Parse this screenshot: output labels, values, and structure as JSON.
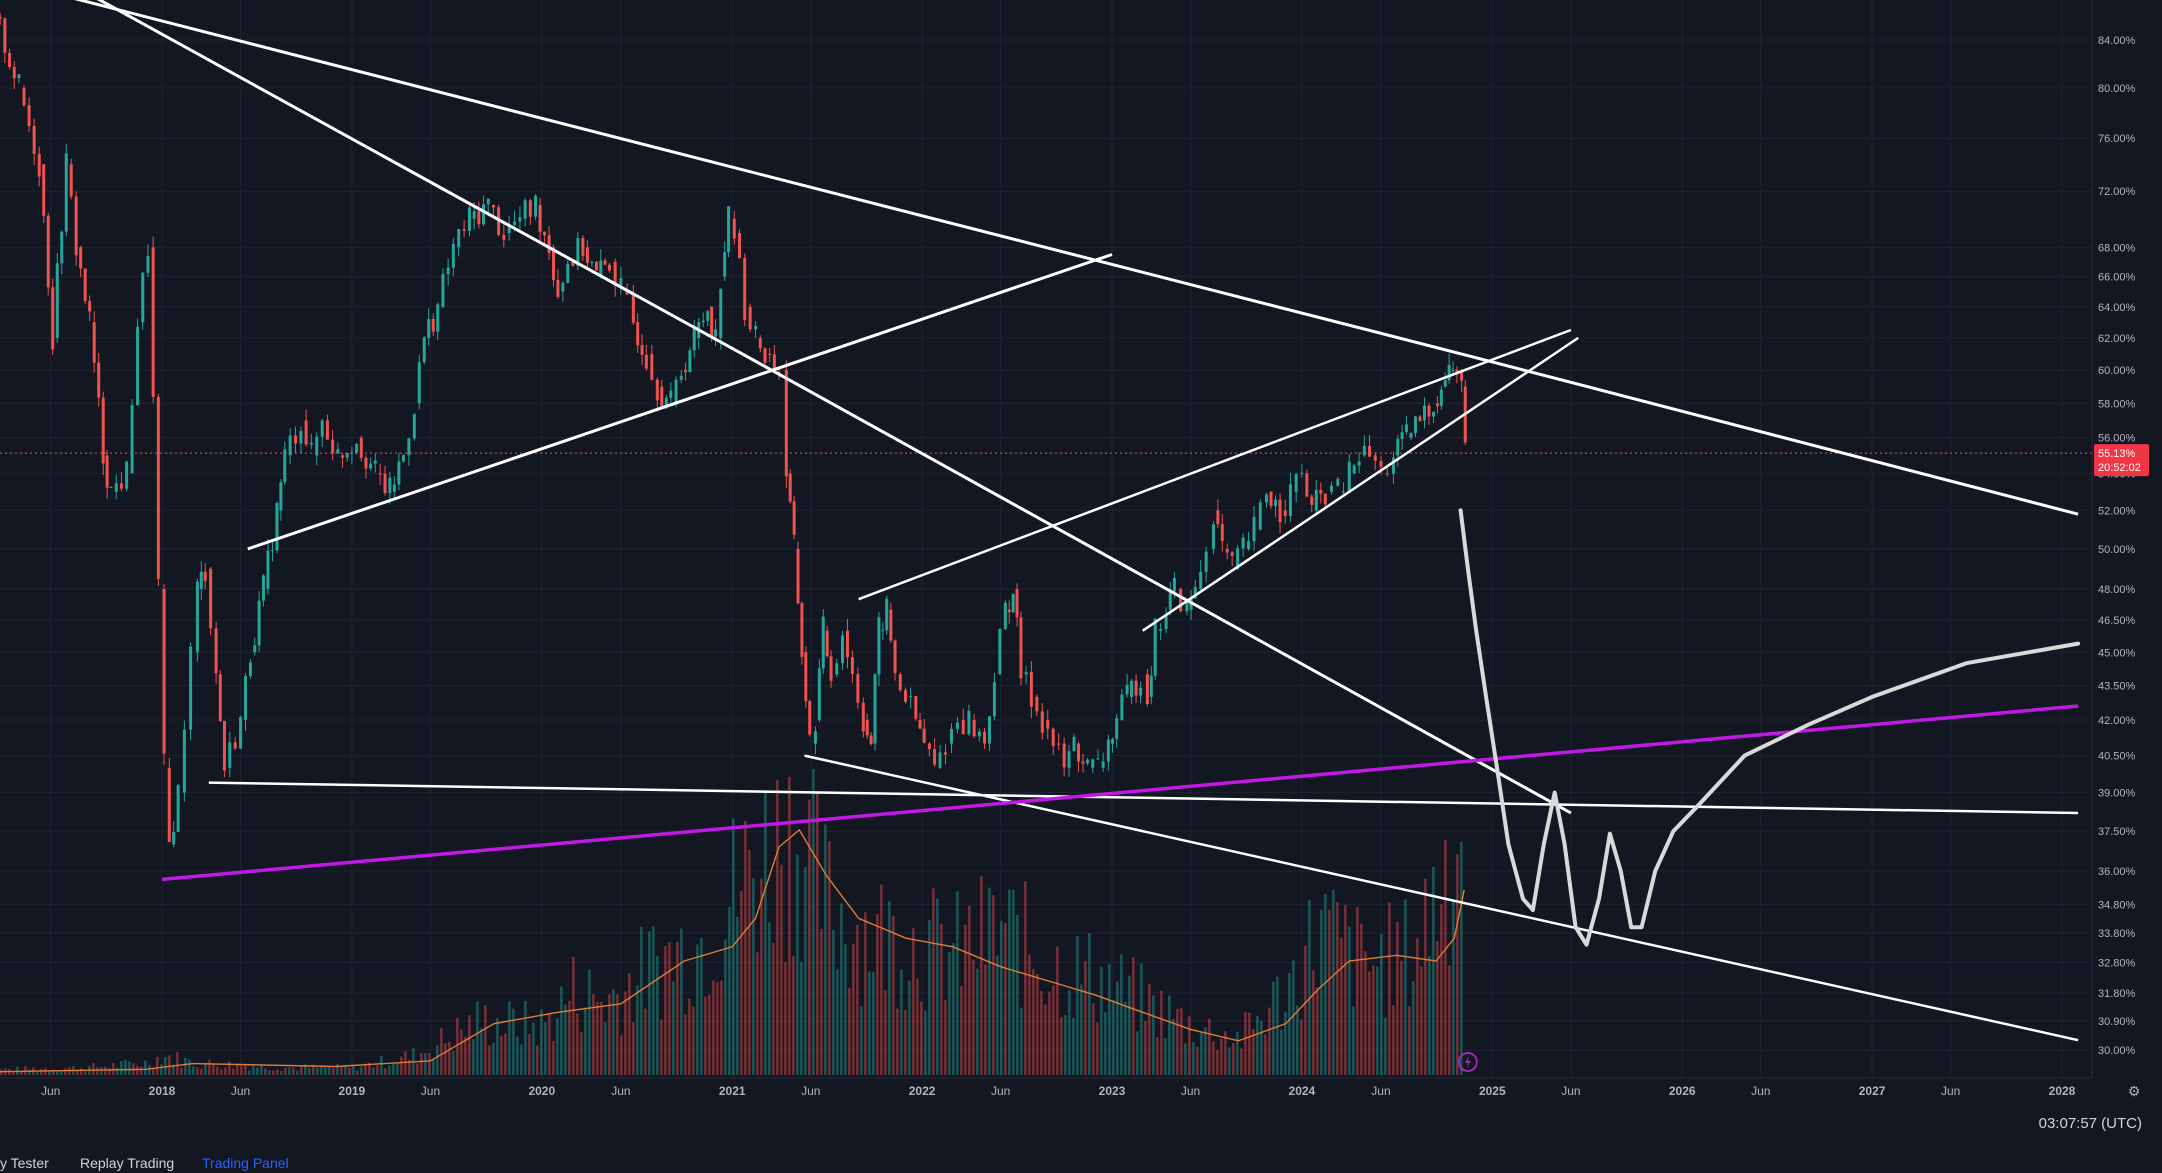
{
  "chart_data": {
    "type": "candlestick",
    "scale": "log",
    "y_axis_format": "percent",
    "y_ticks": [
      "84.00%",
      "80.00%",
      "76.00%",
      "72.00%",
      "68.00%",
      "66.00%",
      "64.00%",
      "62.00%",
      "60.00%",
      "58.00%",
      "56.00%",
      "54.00%",
      "52.00%",
      "50.00%",
      "48.00%",
      "46.50%",
      "45.00%",
      "43.50%",
      "42.00%",
      "40.50%",
      "39.00%",
      "37.50%",
      "36.00%",
      "34.80%",
      "33.80%",
      "32.80%",
      "31.80%",
      "30.90%",
      "30.00%"
    ],
    "y_tick_values": [
      84,
      80,
      76,
      72,
      68,
      66,
      64,
      62,
      60,
      58,
      56,
      54,
      52,
      50,
      48,
      46.5,
      45,
      43.5,
      42,
      40.5,
      39,
      37.5,
      36,
      34.8,
      33.8,
      32.8,
      31.8,
      30.9,
      30
    ],
    "x_ticks": [
      "Jun",
      "2018",
      "Jun",
      "2019",
      "Jun",
      "2020",
      "Jun",
      "2021",
      "Jun",
      "2022",
      "Jun",
      "2023",
      "Jun",
      "2024",
      "Jun",
      "2025",
      "Jun",
      "2026",
      "Jun",
      "2027",
      "Jun",
      "2028"
    ],
    "x_tick_dates": [
      "2017-06",
      "2018-01",
      "2018-06",
      "2019-01",
      "2019-06",
      "2020-01",
      "2020-06",
      "2021-01",
      "2021-06",
      "2022-01",
      "2022-06",
      "2023-01",
      "2023-06",
      "2024-01",
      "2024-06",
      "2025-01",
      "2025-06",
      "2026-01",
      "2026-06",
      "2027-01",
      "2027-06",
      "2028-01"
    ],
    "price_path": [
      [
        "2017-01-05",
        87
      ],
      [
        "2017-02-15",
        86
      ],
      [
        "2017-04-01",
        80
      ],
      [
        "2017-05-10",
        74
      ],
      [
        "2017-06-05",
        62
      ],
      [
        "2017-07-01",
        74
      ],
      [
        "2017-07-20",
        68
      ],
      [
        "2017-08-15",
        63
      ],
      [
        "2017-09-10",
        55
      ],
      [
        "2017-09-25",
        53
      ],
      [
        "2017-10-25",
        54
      ],
      [
        "2017-11-15",
        63
      ],
      [
        "2017-12-05",
        68
      ],
      [
        "2017-12-25",
        48
      ],
      [
        "2018-01-05",
        40
      ],
      [
        "2018-01-15",
        37
      ],
      [
        "2018-02-01",
        39
      ],
      [
        "2018-02-25",
        45
      ],
      [
        "2018-03-10",
        48
      ],
      [
        "2018-03-25",
        49
      ],
      [
        "2018-04-15",
        44
      ],
      [
        "2018-05-01",
        40
      ],
      [
        "2018-06-01",
        42
      ],
      [
        "2018-06-20",
        45
      ],
      [
        "2018-07-15",
        48
      ],
      [
        "2018-08-10",
        52
      ],
      [
        "2018-08-25",
        55
      ],
      [
        "2018-09-25",
        57
      ],
      [
        "2018-10-15",
        55
      ],
      [
        "2018-11-05",
        57
      ],
      [
        "2018-12-05",
        55
      ],
      [
        "2019-01-10",
        56
      ],
      [
        "2019-02-15",
        54
      ],
      [
        "2019-03-15",
        53
      ],
      [
        "2019-04-10",
        55
      ],
      [
        "2019-05-01",
        58
      ],
      [
        "2019-05-20",
        62
      ],
      [
        "2019-06-15",
        64
      ],
      [
        "2019-07-15",
        68
      ],
      [
        "2019-08-15",
        70
      ],
      [
        "2019-09-20",
        71
      ],
      [
        "2019-10-20",
        69
      ],
      [
        "2019-11-20",
        70
      ],
      [
        "2019-12-20",
        71
      ],
      [
        "2020-01-15",
        68
      ],
      [
        "2020-02-01",
        65
      ],
      [
        "2020-02-20",
        67
      ],
      [
        "2020-03-20",
        68
      ],
      [
        "2020-04-15",
        66
      ],
      [
        "2020-05-10",
        67
      ],
      [
        "2020-06-01",
        65
      ],
      [
        "2020-06-25",
        63
      ],
      [
        "2020-07-20",
        61
      ],
      [
        "2020-08-10",
        59
      ],
      [
        "2020-09-05",
        58
      ],
      [
        "2020-09-25",
        60
      ],
      [
        "2020-10-20",
        62
      ],
      [
        "2020-11-15",
        64
      ],
      [
        "2020-11-30",
        62
      ],
      [
        "2020-12-10",
        66
      ],
      [
        "2020-12-25",
        70
      ],
      [
        "2021-01-05",
        69
      ],
      [
        "2021-01-25",
        64
      ],
      [
        "2021-02-15",
        62
      ],
      [
        "2021-03-05",
        61
      ],
      [
        "2021-04-01",
        60
      ],
      [
        "2021-04-15",
        54
      ],
      [
        "2021-04-30",
        50
      ],
      [
        "2021-05-15",
        45
      ],
      [
        "2021-05-30",
        41
      ],
      [
        "2021-06-10",
        42
      ],
      [
        "2021-06-25",
        46
      ],
      [
        "2021-07-10",
        44
      ],
      [
        "2021-08-01",
        46
      ],
      [
        "2021-08-20",
        44
      ],
      [
        "2021-09-10",
        42
      ],
      [
        "2021-09-25",
        41
      ],
      [
        "2021-10-10",
        46
      ],
      [
        "2021-10-25",
        47
      ],
      [
        "2021-11-10",
        44
      ],
      [
        "2021-11-30",
        43
      ],
      [
        "2021-12-20",
        42
      ],
      [
        "2022-01-05",
        41
      ],
      [
        "2022-01-25",
        40
      ],
      [
        "2022-02-15",
        41
      ],
      [
        "2022-03-10",
        42
      ],
      [
        "2022-04-01",
        42
      ],
      [
        "2022-05-01",
        41
      ],
      [
        "2022-05-20",
        44
      ],
      [
        "2022-06-10",
        47
      ],
      [
        "2022-06-25",
        48
      ],
      [
        "2022-07-10",
        44
      ],
      [
        "2022-07-30",
        43
      ],
      [
        "2022-08-20",
        42
      ],
      [
        "2022-09-10",
        41
      ],
      [
        "2022-10-01",
        40
      ],
      [
        "2022-10-20",
        41
      ],
      [
        "2022-11-15",
        40
      ],
      [
        "2022-12-05",
        40
      ],
      [
        "2022-12-25",
        41
      ],
      [
        "2023-01-10",
        42
      ],
      [
        "2023-01-30",
        43
      ],
      [
        "2023-02-25",
        44
      ],
      [
        "2023-03-10",
        43
      ],
      [
        "2023-03-25",
        46
      ],
      [
        "2023-04-15",
        47
      ],
      [
        "2023-05-01",
        48
      ],
      [
        "2023-05-25",
        47
      ],
      [
        "2023-06-10",
        48
      ],
      [
        "2023-07-01",
        50
      ],
      [
        "2023-07-15",
        52
      ],
      [
        "2023-08-01",
        50
      ],
      [
        "2023-08-20",
        49
      ],
      [
        "2023-09-10",
        50
      ],
      [
        "2023-10-01",
        51
      ],
      [
        "2023-10-25",
        53
      ],
      [
        "2023-11-20",
        52
      ],
      [
        "2023-12-10",
        53
      ],
      [
        "2024-01-01",
        54
      ],
      [
        "2024-01-20",
        52
      ],
      [
        "2024-02-15",
        53
      ],
      [
        "2024-03-10",
        53
      ],
      [
        "2024-04-01",
        54
      ],
      [
        "2024-04-20",
        55
      ],
      [
        "2024-05-10",
        55
      ],
      [
        "2024-06-01",
        54
      ],
      [
        "2024-06-25",
        55
      ],
      [
        "2024-07-20",
        56
      ],
      [
        "2024-08-15",
        57
      ],
      [
        "2024-09-10",
        58
      ],
      [
        "2024-09-25",
        59
      ],
      [
        "2024-10-10",
        60
      ],
      [
        "2024-10-25",
        60
      ],
      [
        "2024-11-03",
        59
      ],
      [
        "2024-11-10",
        55.13
      ]
    ],
    "current_price_label": "55.13%",
    "current_time_label": "20:52:02",
    "volume_bars": [
      [
        "2017-01-01",
        2
      ],
      [
        "2017-08-01",
        3
      ],
      [
        "2017-12-01",
        5
      ],
      [
        "2018-01-01",
        8
      ],
      [
        "2018-03-01",
        5
      ],
      [
        "2018-09-01",
        3
      ],
      [
        "2019-01-01",
        3
      ],
      [
        "2019-05-01",
        8
      ],
      [
        "2019-07-01",
        15
      ],
      [
        "2019-09-01",
        22
      ],
      [
        "2020-01-01",
        20
      ],
      [
        "2020-03-01",
        35
      ],
      [
        "2020-05-01",
        30
      ],
      [
        "2020-08-01",
        45
      ],
      [
        "2020-11-01",
        55
      ],
      [
        "2021-01-01",
        75
      ],
      [
        "2021-03-01",
        90
      ],
      [
        "2021-04-15",
        100
      ],
      [
        "2021-05-15",
        95
      ],
      [
        "2021-07-01",
        70
      ],
      [
        "2021-09-01",
        60
      ],
      [
        "2021-12-01",
        55
      ],
      [
        "2022-03-01",
        50
      ],
      [
        "2022-06-01",
        60
      ],
      [
        "2022-09-01",
        45
      ],
      [
        "2022-12-01",
        40
      ],
      [
        "2023-03-01",
        30
      ],
      [
        "2023-06-01",
        20
      ],
      [
        "2023-09-01",
        15
      ],
      [
        "2023-12-01",
        35
      ],
      [
        "2024-02-01",
        60
      ],
      [
        "2024-05-01",
        45
      ],
      [
        "2024-08-01",
        50
      ],
      [
        "2024-10-15",
        95
      ],
      [
        "2024-11-05",
        100
      ]
    ],
    "volume_ma": [
      [
        "2017-01-01",
        1
      ],
      [
        "2017-12-01",
        2
      ],
      [
        "2018-03-01",
        4
      ],
      [
        "2018-12-01",
        3
      ],
      [
        "2019-06-01",
        5
      ],
      [
        "2019-10-01",
        18
      ],
      [
        "2020-02-01",
        22
      ],
      [
        "2020-06-01",
        25
      ],
      [
        "2020-10-01",
        40
      ],
      [
        "2021-01-01",
        45
      ],
      [
        "2021-02-15",
        55
      ],
      [
        "2021-04-01",
        80
      ],
      [
        "2021-05-10",
        86
      ],
      [
        "2021-07-01",
        70
      ],
      [
        "2021-09-01",
        55
      ],
      [
        "2021-12-01",
        48
      ],
      [
        "2022-03-01",
        45
      ],
      [
        "2022-06-01",
        38
      ],
      [
        "2022-09-01",
        33
      ],
      [
        "2022-12-01",
        28
      ],
      [
        "2023-03-01",
        22
      ],
      [
        "2023-06-01",
        16
      ],
      [
        "2023-09-01",
        12
      ],
      [
        "2023-12-01",
        18
      ],
      [
        "2024-02-01",
        30
      ],
      [
        "2024-04-01",
        40
      ],
      [
        "2024-07-01",
        42
      ],
      [
        "2024-09-15",
        40
      ],
      [
        "2024-10-20",
        48
      ],
      [
        "2024-11-08",
        65
      ]
    ],
    "drawings": {
      "white_lines": [
        {
          "points": [
            [
              "2017-01-01",
              90
            ],
            [
              "2025-01-01",
              60.5
            ],
            [
              "2028-02-01",
              51.8
            ]
          ]
        },
        {
          "points": [
            [
              "2017-08-15",
              88
            ],
            [
              "2021-01-20",
              61
            ],
            [
              "2025-06-01",
              38.2
            ]
          ]
        },
        {
          "points": [
            [
              "2018-06-15",
              50
            ],
            [
              "2023-01-01",
              67.5
            ]
          ]
        },
        {
          "points": [
            [
              "2018-04-01",
              39.4
            ],
            [
              "2028-02-01",
              38.2
            ]
          ]
        },
        {
          "points": [
            [
              "2021-05-20",
              40.5
            ],
            [
              "2028-02-01",
              30.3
            ]
          ]
        },
        {
          "points": [
            [
              "2021-09-01",
              47.5
            ],
            [
              "2025-06-01",
              62.5
            ]
          ]
        },
        {
          "points": [
            [
              "2023-03-01",
              46
            ],
            [
              "2025-06-15",
              62
            ]
          ]
        }
      ],
      "magenta_line": {
        "points": [
          [
            "2018-01-01",
            35.7
          ],
          [
            "2028-02-01",
            42.6
          ]
        ]
      },
      "projection_curve": [
        [
          "2024-11-01",
          52
        ],
        [
          "2024-11-15",
          49
        ],
        [
          "2024-12-01",
          46
        ],
        [
          "2024-12-20",
          43
        ],
        [
          "2025-01-10",
          40
        ],
        [
          "2025-02-01",
          37
        ],
        [
          "2025-03-01",
          35
        ],
        [
          "2025-03-20",
          34.6
        ],
        [
          "2025-04-10",
          37
        ],
        [
          "2025-05-01",
          39
        ],
        [
          "2025-05-20",
          37
        ],
        [
          "2025-06-10",
          34
        ],
        [
          "2025-07-01",
          33.4
        ],
        [
          "2025-07-25",
          35
        ],
        [
          "2025-08-15",
          37.4
        ],
        [
          "2025-09-05",
          36
        ],
        [
          "2025-09-25",
          34
        ],
        [
          "2025-10-15",
          34
        ],
        [
          "2025-11-10",
          36
        ],
        [
          "2025-12-15",
          37.5
        ],
        [
          "2026-02-01",
          38.5
        ],
        [
          "2026-05-01",
          40.5
        ],
        [
          "2026-09-01",
          41.8
        ],
        [
          "2027-01-01",
          43
        ],
        [
          "2027-07-01",
          44.5
        ],
        [
          "2028-02-01",
          45.4
        ]
      ]
    }
  },
  "bottom_bar": {
    "tabs": [
      "y Tester",
      "Replay Trading",
      "Trading Panel"
    ],
    "clock": "03:07:57 (UTC)"
  }
}
